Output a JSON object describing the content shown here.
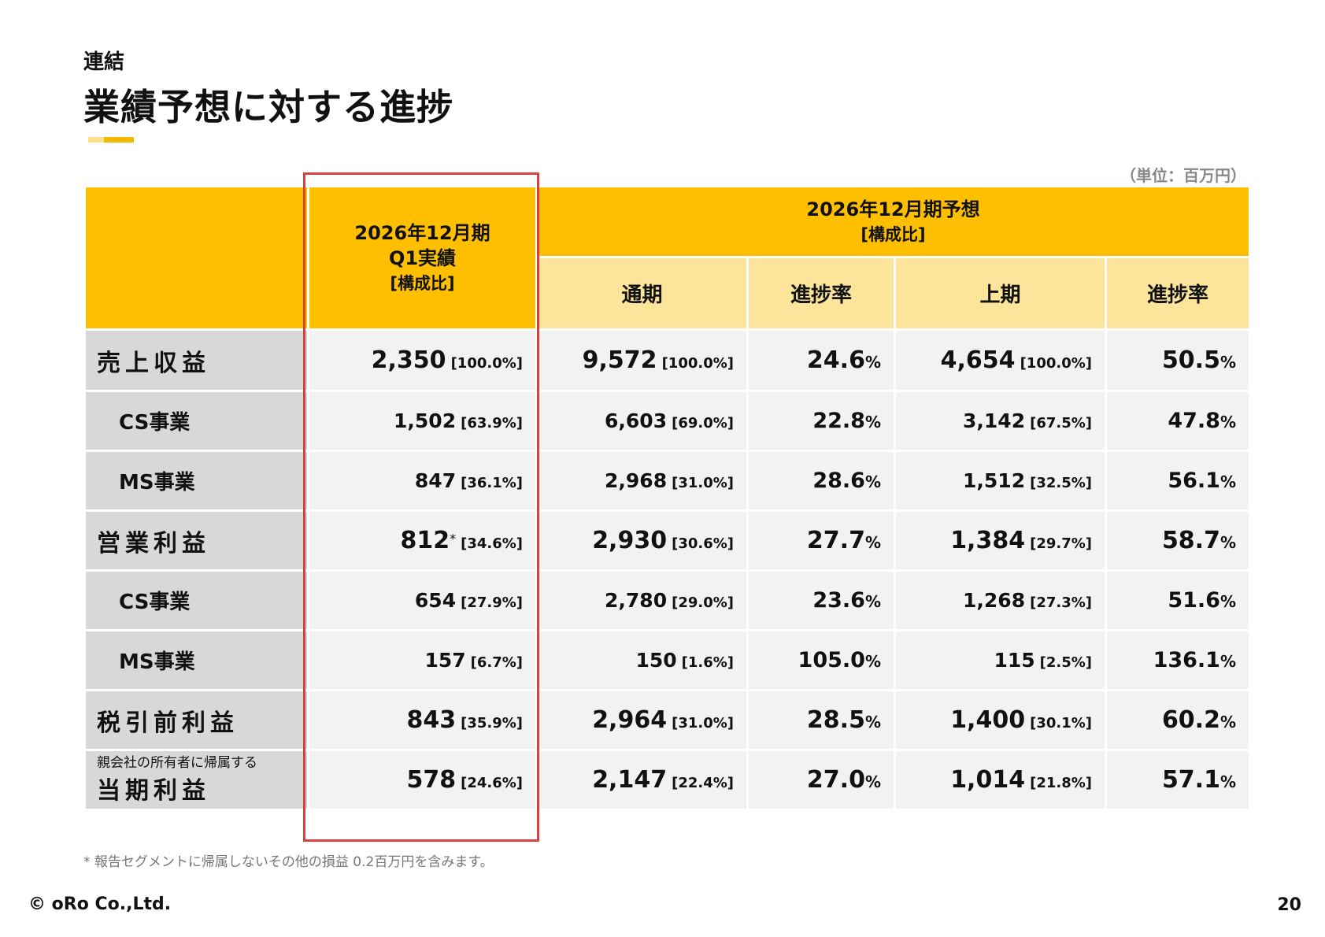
{
  "header": {
    "subtitle": "連結",
    "title": "業績予想に対する進捗",
    "unit": "（単位：百万円）"
  },
  "table": {
    "col_actual": [
      "2026年12月期",
      "Q1実績",
      "[構成比]"
    ],
    "col_forecast": [
      "2026年12月期予想",
      "[構成比]"
    ],
    "sub_headers": [
      "通期",
      "進捗率",
      "上期",
      "進捗率"
    ],
    "rows": [
      {
        "label": "売上収益",
        "actual": "2,350",
        "actual_ratio": "[100.0%]",
        "full": "9,572",
        "full_ratio": "[100.0%]",
        "full_prog": "24.6",
        "half": "4,654",
        "half_ratio": "[100.0%]",
        "half_prog": "50.5"
      },
      {
        "label": "CS事業",
        "actual": "1,502",
        "actual_ratio": "[63.9%]",
        "full": "6,603",
        "full_ratio": "[69.0%]",
        "full_prog": "22.8",
        "half": "3,142",
        "half_ratio": "[67.5%]",
        "half_prog": "47.8"
      },
      {
        "label": "MS事業",
        "actual": "847",
        "actual_ratio": "[36.1%]",
        "full": "2,968",
        "full_ratio": "[31.0%]",
        "full_prog": "28.6",
        "half": "1,512",
        "half_ratio": "[32.5%]",
        "half_prog": "56.1"
      },
      {
        "label": "営業利益",
        "actual": "812",
        "actual_mark": "*",
        "actual_ratio": "[34.6%]",
        "full": "2,930",
        "full_ratio": "[30.6%]",
        "full_prog": "27.7",
        "half": "1,384",
        "half_ratio": "[29.7%]",
        "half_prog": "58.7"
      },
      {
        "label": "CS事業",
        "actual": "654",
        "actual_ratio": "[27.9%]",
        "full": "2,780",
        "full_ratio": "[29.0%]",
        "full_prog": "23.6",
        "half": "1,268",
        "half_ratio": "[27.3%]",
        "half_prog": "51.6"
      },
      {
        "label": "MS事業",
        "actual": "157",
        "actual_ratio": "[6.7%]",
        "full": "150",
        "full_ratio": "[1.6%]",
        "full_prog": "105.0",
        "half": "115",
        "half_ratio": "[2.5%]",
        "half_prog": "136.1"
      },
      {
        "label": "税引前利益",
        "actual": "843",
        "actual_ratio": "[35.9%]",
        "full": "2,964",
        "full_ratio": "[31.0%]",
        "full_prog": "28.5",
        "half": "1,400",
        "half_ratio": "[30.1%]",
        "half_prog": "60.2"
      },
      {
        "label_small": "親会社の所有者に帰属する",
        "label": "当期利益",
        "actual": "578",
        "actual_ratio": "[24.6%]",
        "full": "2,147",
        "full_ratio": "[22.4%]",
        "full_prog": "27.0",
        "half": "1,014",
        "half_ratio": "[21.8%]",
        "half_prog": "57.1"
      }
    ],
    "percent_sign": "%"
  },
  "footnote": "* 報告セグメントに帰属しないその他の損益 0.2百万円を含みます。",
  "footer": {
    "logo": "© oRo Co.,Ltd.",
    "page": "20"
  },
  "colors": {
    "header": "#fdbf00",
    "subheader": "#fde49b",
    "label_bg": "#d8d8d8",
    "cell_bg": "#f2f2f2",
    "highlight": "#d9413f"
  }
}
